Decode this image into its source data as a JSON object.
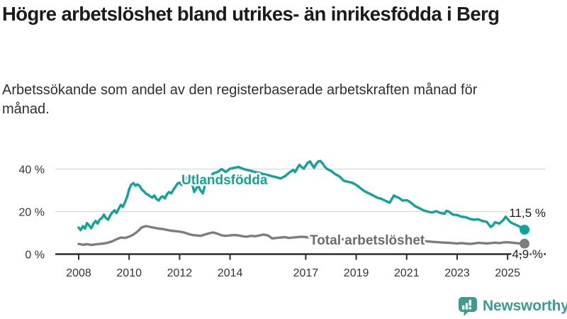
{
  "chart_data": {
    "type": "line",
    "title": "Högre arbetslöshet bland utrikes- än inrikesfödda i Berg",
    "subtitle": "Arbetssökande som andel av den registerbaserade arbetskraften månad för månad.",
    "xlabel": "",
    "ylabel": "",
    "xlim": [
      2007.1,
      2026.5
    ],
    "ylim": [
      0,
      46
    ],
    "grid": true,
    "legend_position": "inline-labels",
    "x_ticks": [
      2008,
      2010,
      2012,
      2014,
      2017,
      2019,
      2021,
      2023,
      2025
    ],
    "y_ticks": [
      {
        "v": 0,
        "label": "0 %"
      },
      {
        "v": 20,
        "label": "20 %"
      },
      {
        "v": 40,
        "label": "40 %"
      }
    ],
    "series": [
      {
        "name": "Total arbetslöshet",
        "color": "#7d7d7d",
        "label_color": "#6b6b6b",
        "end_label": "4,9 %",
        "end_value": 4.9,
        "points": [
          [
            2008.0,
            4.8
          ],
          [
            2008.17,
            4.4
          ],
          [
            2008.33,
            4.7
          ],
          [
            2008.5,
            4.3
          ],
          [
            2008.67,
            4.6
          ],
          [
            2008.83,
            4.8
          ],
          [
            2009.0,
            5.0
          ],
          [
            2009.17,
            5.4
          ],
          [
            2009.33,
            6.0
          ],
          [
            2009.5,
            7.0
          ],
          [
            2009.67,
            7.8
          ],
          [
            2009.83,
            7.6
          ],
          [
            2010.0,
            8.2
          ],
          [
            2010.17,
            9.2
          ],
          [
            2010.33,
            10.6
          ],
          [
            2010.5,
            12.6
          ],
          [
            2010.67,
            13.2
          ],
          [
            2010.83,
            12.8
          ],
          [
            2011.0,
            12.4
          ],
          [
            2011.17,
            12.0
          ],
          [
            2011.33,
            11.8
          ],
          [
            2011.5,
            11.4
          ],
          [
            2011.67,
            11.0
          ],
          [
            2011.83,
            10.8
          ],
          [
            2012.0,
            10.6
          ],
          [
            2012.17,
            10.2
          ],
          [
            2012.33,
            9.6
          ],
          [
            2012.5,
            9.0
          ],
          [
            2012.67,
            8.8
          ],
          [
            2012.83,
            8.6
          ],
          [
            2013.0,
            9.2
          ],
          [
            2013.17,
            9.8
          ],
          [
            2013.33,
            10.2
          ],
          [
            2013.5,
            9.6
          ],
          [
            2013.67,
            8.8
          ],
          [
            2013.83,
            8.6
          ],
          [
            2014.0,
            8.8
          ],
          [
            2014.17,
            9.0
          ],
          [
            2014.33,
            8.8
          ],
          [
            2014.5,
            8.4
          ],
          [
            2014.67,
            8.2
          ],
          [
            2014.83,
            8.6
          ],
          [
            2015.0,
            8.4
          ],
          [
            2015.17,
            8.8
          ],
          [
            2015.33,
            9.2
          ],
          [
            2015.5,
            8.8
          ],
          [
            2015.67,
            7.4
          ],
          [
            2015.83,
            7.6
          ],
          [
            2016.0,
            7.8
          ],
          [
            2016.17,
            8.0
          ],
          [
            2016.33,
            7.6
          ],
          [
            2016.5,
            7.8
          ],
          [
            2016.67,
            8.0
          ],
          [
            2016.83,
            8.2
          ],
          [
            2017.0,
            8.0
          ],
          [
            2017.33,
            7.8
          ],
          [
            2017.67,
            7.4
          ],
          [
            2018.0,
            7.2
          ],
          [
            2018.5,
            7.0
          ],
          [
            2019.0,
            6.8
          ],
          [
            2019.5,
            6.5
          ],
          [
            2020.0,
            6.3
          ],
          [
            2020.5,
            7.0
          ],
          [
            2021.0,
            6.8
          ],
          [
            2021.5,
            6.3
          ],
          [
            2022.0,
            5.8
          ],
          [
            2022.5,
            5.4
          ],
          [
            2022.67,
            5.3
          ],
          [
            2022.83,
            5.2
          ],
          [
            2023.0,
            5.0
          ],
          [
            2023.17,
            5.2
          ],
          [
            2023.33,
            5.0
          ],
          [
            2023.5,
            4.8
          ],
          [
            2023.67,
            5.0
          ],
          [
            2023.83,
            5.3
          ],
          [
            2024.0,
            5.2
          ],
          [
            2024.17,
            5.0
          ],
          [
            2024.33,
            5.2
          ],
          [
            2024.5,
            5.4
          ],
          [
            2024.67,
            5.2
          ],
          [
            2024.83,
            5.5
          ],
          [
            2025.0,
            5.6
          ],
          [
            2025.17,
            5.4
          ],
          [
            2025.33,
            5.2
          ],
          [
            2025.5,
            5.0
          ],
          [
            2025.67,
            4.9
          ]
        ]
      },
      {
        "name": "Utlandsfödda",
        "color": "#0fa49a",
        "label_color": "#0fa49a",
        "end_label": "11,5 %",
        "end_value": 11.5,
        "points": [
          [
            2008.0,
            12.5
          ],
          [
            2008.08,
            11.3
          ],
          [
            2008.17,
            13.2
          ],
          [
            2008.25,
            12.0
          ],
          [
            2008.33,
            14.6
          ],
          [
            2008.42,
            13.4
          ],
          [
            2008.5,
            12.2
          ],
          [
            2008.58,
            14.2
          ],
          [
            2008.67,
            15.6
          ],
          [
            2008.75,
            14.4
          ],
          [
            2008.83,
            16.2
          ],
          [
            2008.92,
            17.0
          ],
          [
            2009.0,
            18.6
          ],
          [
            2009.08,
            17.0
          ],
          [
            2009.17,
            16.2
          ],
          [
            2009.25,
            18.2
          ],
          [
            2009.33,
            19.6
          ],
          [
            2009.42,
            20.6
          ],
          [
            2009.5,
            19.4
          ],
          [
            2009.58,
            21.2
          ],
          [
            2009.67,
            23.2
          ],
          [
            2009.75,
            22.2
          ],
          [
            2009.83,
            24.2
          ],
          [
            2009.92,
            27.0
          ],
          [
            2010.0,
            30.5
          ],
          [
            2010.08,
            32.6
          ],
          [
            2010.17,
            33.4
          ],
          [
            2010.25,
            32.2
          ],
          [
            2010.33,
            32.8
          ],
          [
            2010.42,
            32.0
          ],
          [
            2010.5,
            30.4
          ],
          [
            2010.58,
            29.6
          ],
          [
            2010.67,
            28.4
          ],
          [
            2010.75,
            28.0
          ],
          [
            2010.83,
            27.2
          ],
          [
            2010.92,
            26.6
          ],
          [
            2011.0,
            27.6
          ],
          [
            2011.08,
            26.0
          ],
          [
            2011.17,
            25.2
          ],
          [
            2011.25,
            26.6
          ],
          [
            2011.33,
            27.2
          ],
          [
            2011.42,
            26.2
          ],
          [
            2011.5,
            28.2
          ],
          [
            2011.58,
            29.2
          ],
          [
            2011.67,
            28.6
          ],
          [
            2011.75,
            30.2
          ],
          [
            2011.83,
            31.6
          ],
          [
            2011.92,
            33.2
          ],
          [
            2012.0,
            33.6
          ],
          [
            2012.08,
            32.6
          ],
          [
            2012.17,
            34.2
          ],
          [
            2012.25,
            35.6
          ],
          [
            2012.33,
            36.6
          ],
          [
            2012.42,
            35.4
          ],
          [
            2012.5,
            33.0
          ],
          [
            2012.58,
            29.2
          ],
          [
            2012.67,
            31.2
          ],
          [
            2012.75,
            32.0
          ],
          [
            2012.83,
            30.0
          ],
          [
            2012.92,
            28.6
          ],
          [
            2013.0,
            32.2
          ],
          [
            2013.17,
            35.0
          ],
          [
            2013.33,
            38.0
          ],
          [
            2013.5,
            38.6
          ],
          [
            2013.67,
            40.0
          ],
          [
            2013.83,
            38.6
          ],
          [
            2014.0,
            40.2
          ],
          [
            2014.17,
            40.6
          ],
          [
            2014.33,
            41.0
          ],
          [
            2014.5,
            40.2
          ],
          [
            2014.67,
            39.6
          ],
          [
            2014.83,
            39.2
          ],
          [
            2015.0,
            38.6
          ],
          [
            2015.17,
            38.2
          ],
          [
            2015.33,
            37.6
          ],
          [
            2015.5,
            37.2
          ],
          [
            2015.67,
            36.6
          ],
          [
            2015.83,
            36.2
          ],
          [
            2016.0,
            35.6
          ],
          [
            2016.17,
            36.6
          ],
          [
            2016.33,
            38.2
          ],
          [
            2016.5,
            39.6
          ],
          [
            2016.58,
            38.6
          ],
          [
            2016.67,
            40.6
          ],
          [
            2016.75,
            42.0
          ],
          [
            2016.83,
            41.0
          ],
          [
            2016.92,
            40.2
          ],
          [
            2017.0,
            41.6
          ],
          [
            2017.08,
            43.0
          ],
          [
            2017.17,
            43.6
          ],
          [
            2017.25,
            42.0
          ],
          [
            2017.33,
            40.6
          ],
          [
            2017.42,
            42.6
          ],
          [
            2017.5,
            43.6
          ],
          [
            2017.58,
            43.8
          ],
          [
            2017.67,
            42.6
          ],
          [
            2017.75,
            41.2
          ],
          [
            2017.83,
            40.2
          ],
          [
            2017.92,
            39.6
          ],
          [
            2018.0,
            39.2
          ],
          [
            2018.17,
            37.6
          ],
          [
            2018.33,
            36.6
          ],
          [
            2018.5,
            34.6
          ],
          [
            2018.67,
            34.0
          ],
          [
            2018.83,
            33.6
          ],
          [
            2019.0,
            32.6
          ],
          [
            2019.17,
            31.0
          ],
          [
            2019.33,
            29.6
          ],
          [
            2019.5,
            28.6
          ],
          [
            2019.67,
            27.6
          ],
          [
            2019.83,
            26.6
          ],
          [
            2020.0,
            26.0
          ],
          [
            2020.17,
            25.0
          ],
          [
            2020.33,
            24.2
          ],
          [
            2020.42,
            26.2
          ],
          [
            2020.5,
            27.6
          ],
          [
            2020.58,
            27.0
          ],
          [
            2020.67,
            26.6
          ],
          [
            2020.75,
            26.0
          ],
          [
            2020.83,
            25.2
          ],
          [
            2021.0,
            25.4
          ],
          [
            2021.17,
            24.2
          ],
          [
            2021.33,
            22.6
          ],
          [
            2021.5,
            21.6
          ],
          [
            2021.67,
            20.6
          ],
          [
            2021.83,
            20.0
          ],
          [
            2022.0,
            19.6
          ],
          [
            2022.17,
            20.2
          ],
          [
            2022.33,
            19.4
          ],
          [
            2022.5,
            19.0
          ],
          [
            2022.58,
            20.4
          ],
          [
            2022.67,
            20.0
          ],
          [
            2022.83,
            18.6
          ],
          [
            2023.0,
            18.4
          ],
          [
            2023.17,
            17.6
          ],
          [
            2023.33,
            17.4
          ],
          [
            2023.5,
            16.6
          ],
          [
            2023.67,
            16.2
          ],
          [
            2023.83,
            16.4
          ],
          [
            2024.0,
            15.6
          ],
          [
            2024.17,
            15.2
          ],
          [
            2024.33,
            12.8
          ],
          [
            2024.42,
            13.6
          ],
          [
            2024.5,
            15.0
          ],
          [
            2024.67,
            14.4
          ],
          [
            2024.83,
            16.0
          ],
          [
            2024.92,
            17.6
          ],
          [
            2025.08,
            15.4
          ],
          [
            2025.17,
            14.6
          ],
          [
            2025.33,
            13.8
          ],
          [
            2025.5,
            12.8
          ],
          [
            2025.67,
            11.5
          ]
        ]
      }
    ]
  },
  "colors": {
    "accent_teal": "#0fa49a",
    "line_gray": "#7d7d7d",
    "gridline": "#d8d8d8",
    "axis": "#2b2b2b",
    "logo_teal": "#3d9c90"
  },
  "logo": {
    "text": "Newsworthy",
    "icon": "bar-chart-speech-bubble-icon"
  }
}
